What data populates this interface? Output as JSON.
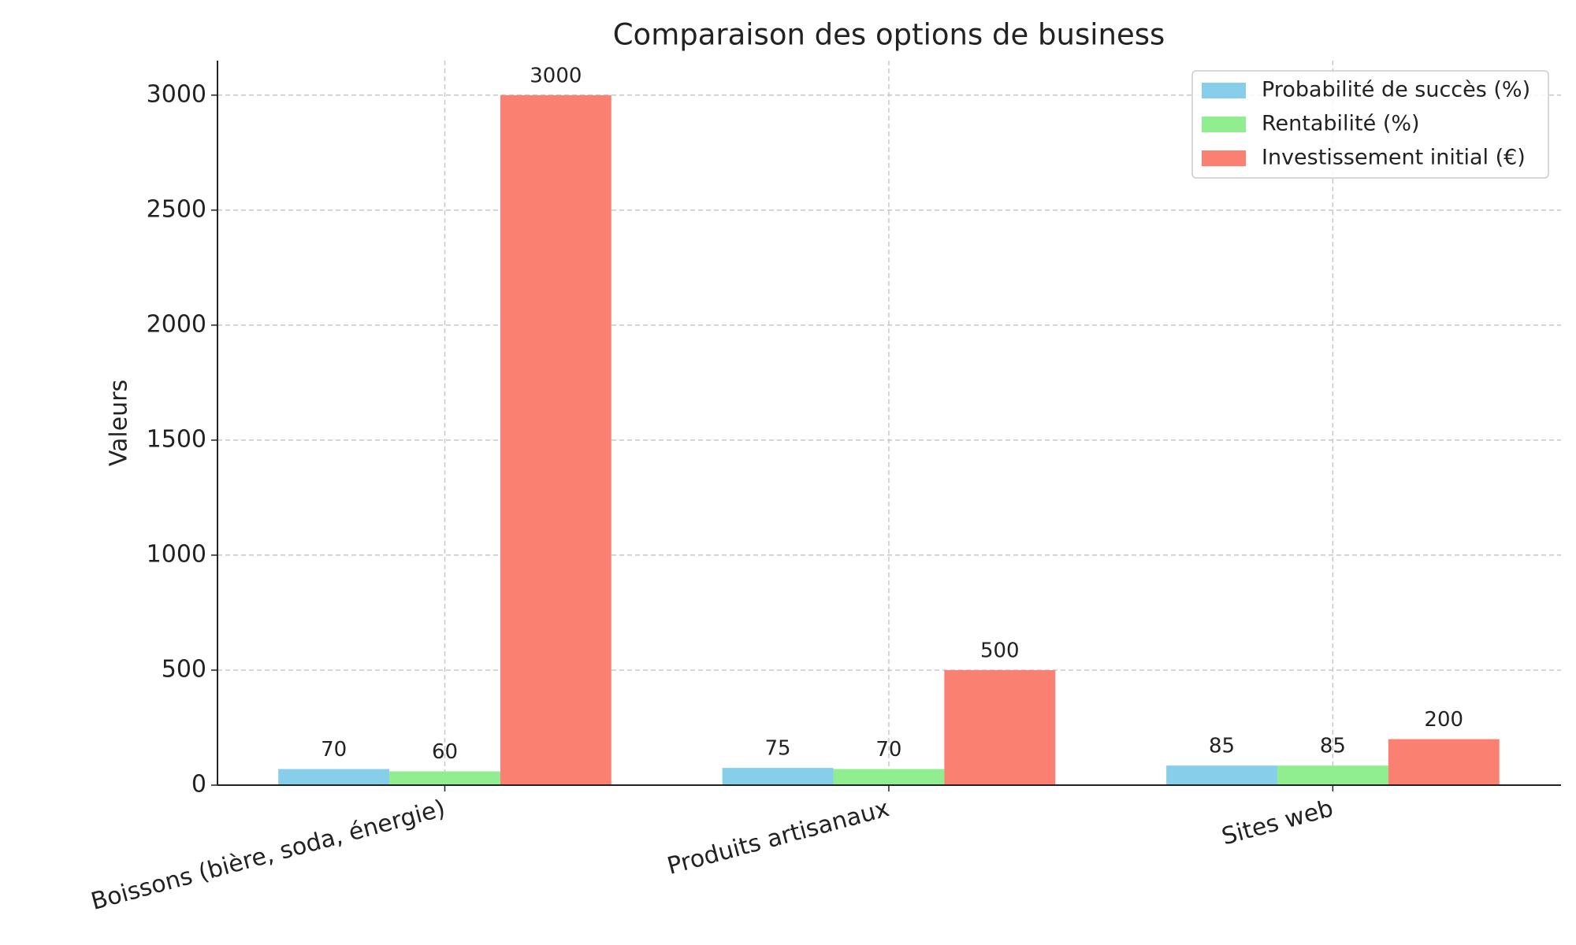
{
  "chart_data": {
    "type": "bar",
    "title": "Comparaison des options de business",
    "y_label": "Valeurs",
    "categories": [
      "Boissons (bière, soda, énergie)",
      "Produits artisanaux",
      "Sites web"
    ],
    "series": [
      {
        "name": "Probabilité de succès (%)",
        "color": "#87ceeb",
        "values": [
          70,
          75,
          85
        ]
      },
      {
        "name": "Rentabilité (%)",
        "color": "#90ee90",
        "values": [
          60,
          70,
          85
        ]
      },
      {
        "name": "Investissement initial (€)",
        "color": "#fa8072",
        "values": [
          3000,
          500,
          200
        ]
      }
    ],
    "ylim": [
      0,
      3150
    ],
    "yticks": [
      0,
      500,
      1000,
      1500,
      2000,
      2500,
      3000
    ],
    "grid": true,
    "legend": "upper right"
  }
}
